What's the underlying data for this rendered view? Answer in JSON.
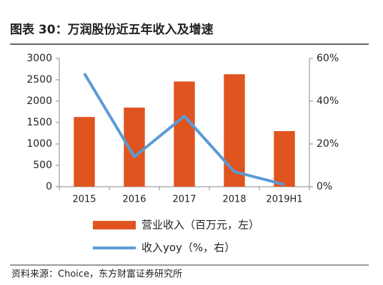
{
  "chart_data": {
    "type": "bar-line",
    "title": "图表 30：万润股份近五年收入及增速",
    "categories": [
      "2015",
      "2016",
      "2017",
      "2018",
      "2019H1"
    ],
    "series": [
      {
        "name": "营业收入（百万元，左）",
        "type": "bar",
        "color": "#e0541f",
        "values": [
          1630,
          1850,
          2460,
          2630,
          1300
        ]
      },
      {
        "name": "收入yoy（%，右）",
        "type": "line",
        "axis": "y2",
        "color": "#5b9bd5",
        "values": [
          53,
          14,
          33,
          7,
          1
        ]
      }
    ],
    "ylim": [
      0,
      3000
    ],
    "yticks": [
      0,
      500,
      1000,
      1500,
      2000,
      2500,
      3000
    ],
    "y2lim": [
      0,
      60
    ],
    "y2ticks": [
      {
        "value": 0,
        "label": "0%"
      },
      {
        "value": 20,
        "label": "20%"
      },
      {
        "value": 40,
        "label": "40%"
      },
      {
        "value": 60,
        "label": "60%"
      }
    ],
    "grid": false,
    "source": "资料来源：Choice，东方财富证券研究所"
  }
}
